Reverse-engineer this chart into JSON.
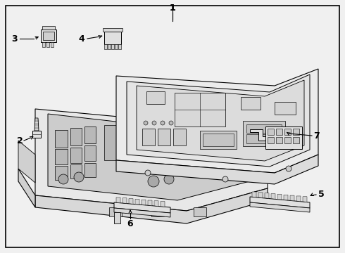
{
  "background_color": "#f0f0f0",
  "border_color": "#000000",
  "line_color": "#000000",
  "figsize": [
    4.9,
    3.6
  ],
  "dpi": 100
}
